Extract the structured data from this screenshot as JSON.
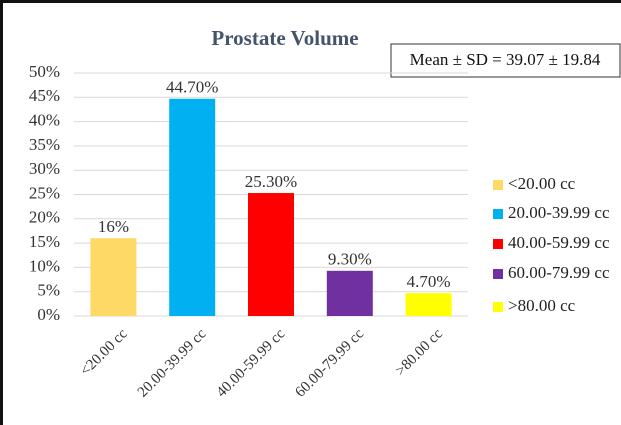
{
  "chart_data": {
    "type": "bar",
    "title": "Prostate Volume",
    "annotation": "Mean ± SD = 39.07 ± 19.84",
    "categories": [
      "<20.00 cc",
      "20.00-39.99 cc",
      "40.00-59.99 cc",
      "60.00-79.99 cc",
      ">80.00 cc"
    ],
    "values": [
      16,
      44.7,
      25.3,
      9.3,
      4.7
    ],
    "value_labels": [
      "16%",
      "44.70%",
      "25.30%",
      "9.30%",
      "4.70%"
    ],
    "colors": [
      "#ffd966",
      "#00b0f0",
      "#ff0000",
      "#7030a0",
      "#ffff00"
    ],
    "ylim": [
      0,
      50
    ],
    "yticks": [
      {
        "value": 0,
        "label": "0%"
      },
      {
        "value": 5,
        "label": "5%"
      },
      {
        "value": 10,
        "label": "10%"
      },
      {
        "value": 15,
        "label": "15%"
      },
      {
        "value": 20,
        "label": "20%"
      },
      {
        "value": 25,
        "label": "25%"
      },
      {
        "value": 30,
        "label": "30%"
      },
      {
        "value": 35,
        "label": "35%"
      },
      {
        "value": 40,
        "label": "40%"
      },
      {
        "value": 45,
        "label": "45%"
      },
      {
        "value": 50,
        "label": "50%"
      }
    ],
    "grid": true,
    "legend": "right"
  }
}
